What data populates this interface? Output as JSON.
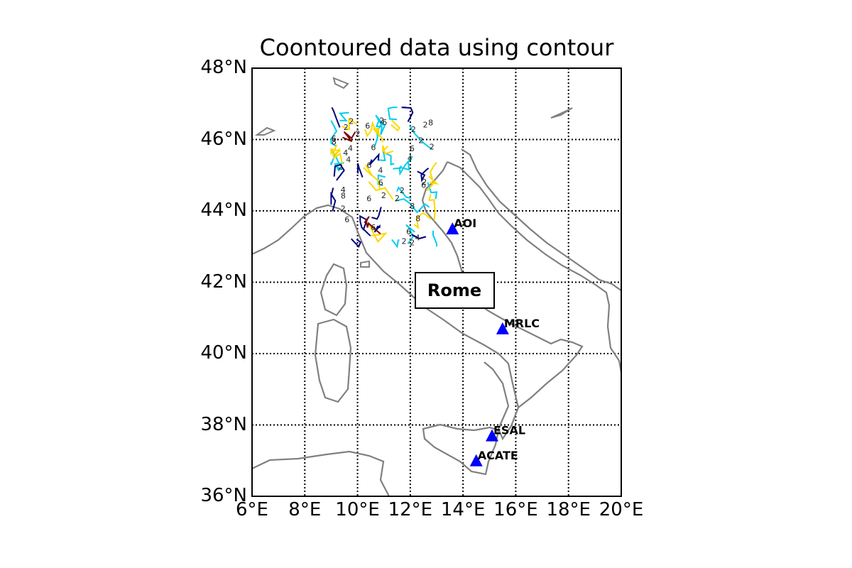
{
  "title": "Coontoured data using contour",
  "latitude_labels": [
    "36°N",
    "38°N",
    "40°N",
    "42°N",
    "44°N",
    "46°N",
    "48°N"
  ],
  "longitude_labels": [
    "6°E",
    "8°E",
    "10°E",
    "12°E",
    "14°E",
    "16°E",
    "18°E",
    "20°E"
  ],
  "map_extent": {
    "lon_min": 6,
    "lon_max": 20,
    "lat_min": 36,
    "lat_max": 48
  },
  "grid": {
    "on": true,
    "lon_step": 2,
    "lat_step": 2,
    "style": "dotted"
  },
  "stations": [
    {
      "name": "AOI",
      "lon": 13.6,
      "lat": 43.5
    },
    {
      "name": "MRLC",
      "lon": 15.5,
      "lat": 40.7
    },
    {
      "name": "ESAL",
      "lon": 15.1,
      "lat": 37.7
    },
    {
      "name": "ACATE",
      "lon": 14.5,
      "lat": 37.0
    }
  ],
  "city": {
    "name": "Rome",
    "lon": 12.5,
    "lat": 42.0
  },
  "colors": {
    "coastline": "#808080",
    "station_marker": "#0000ff",
    "contour_levels": [
      "#000080",
      "#00ccee",
      "#ffd700",
      "#800000"
    ]
  },
  "contour_region": {
    "lon_min": 9.0,
    "lon_max": 13.0,
    "lat_min": 43.0,
    "lat_max": 46.9
  },
  "contour_labels": [
    "2",
    "4",
    "6",
    "8"
  ]
}
